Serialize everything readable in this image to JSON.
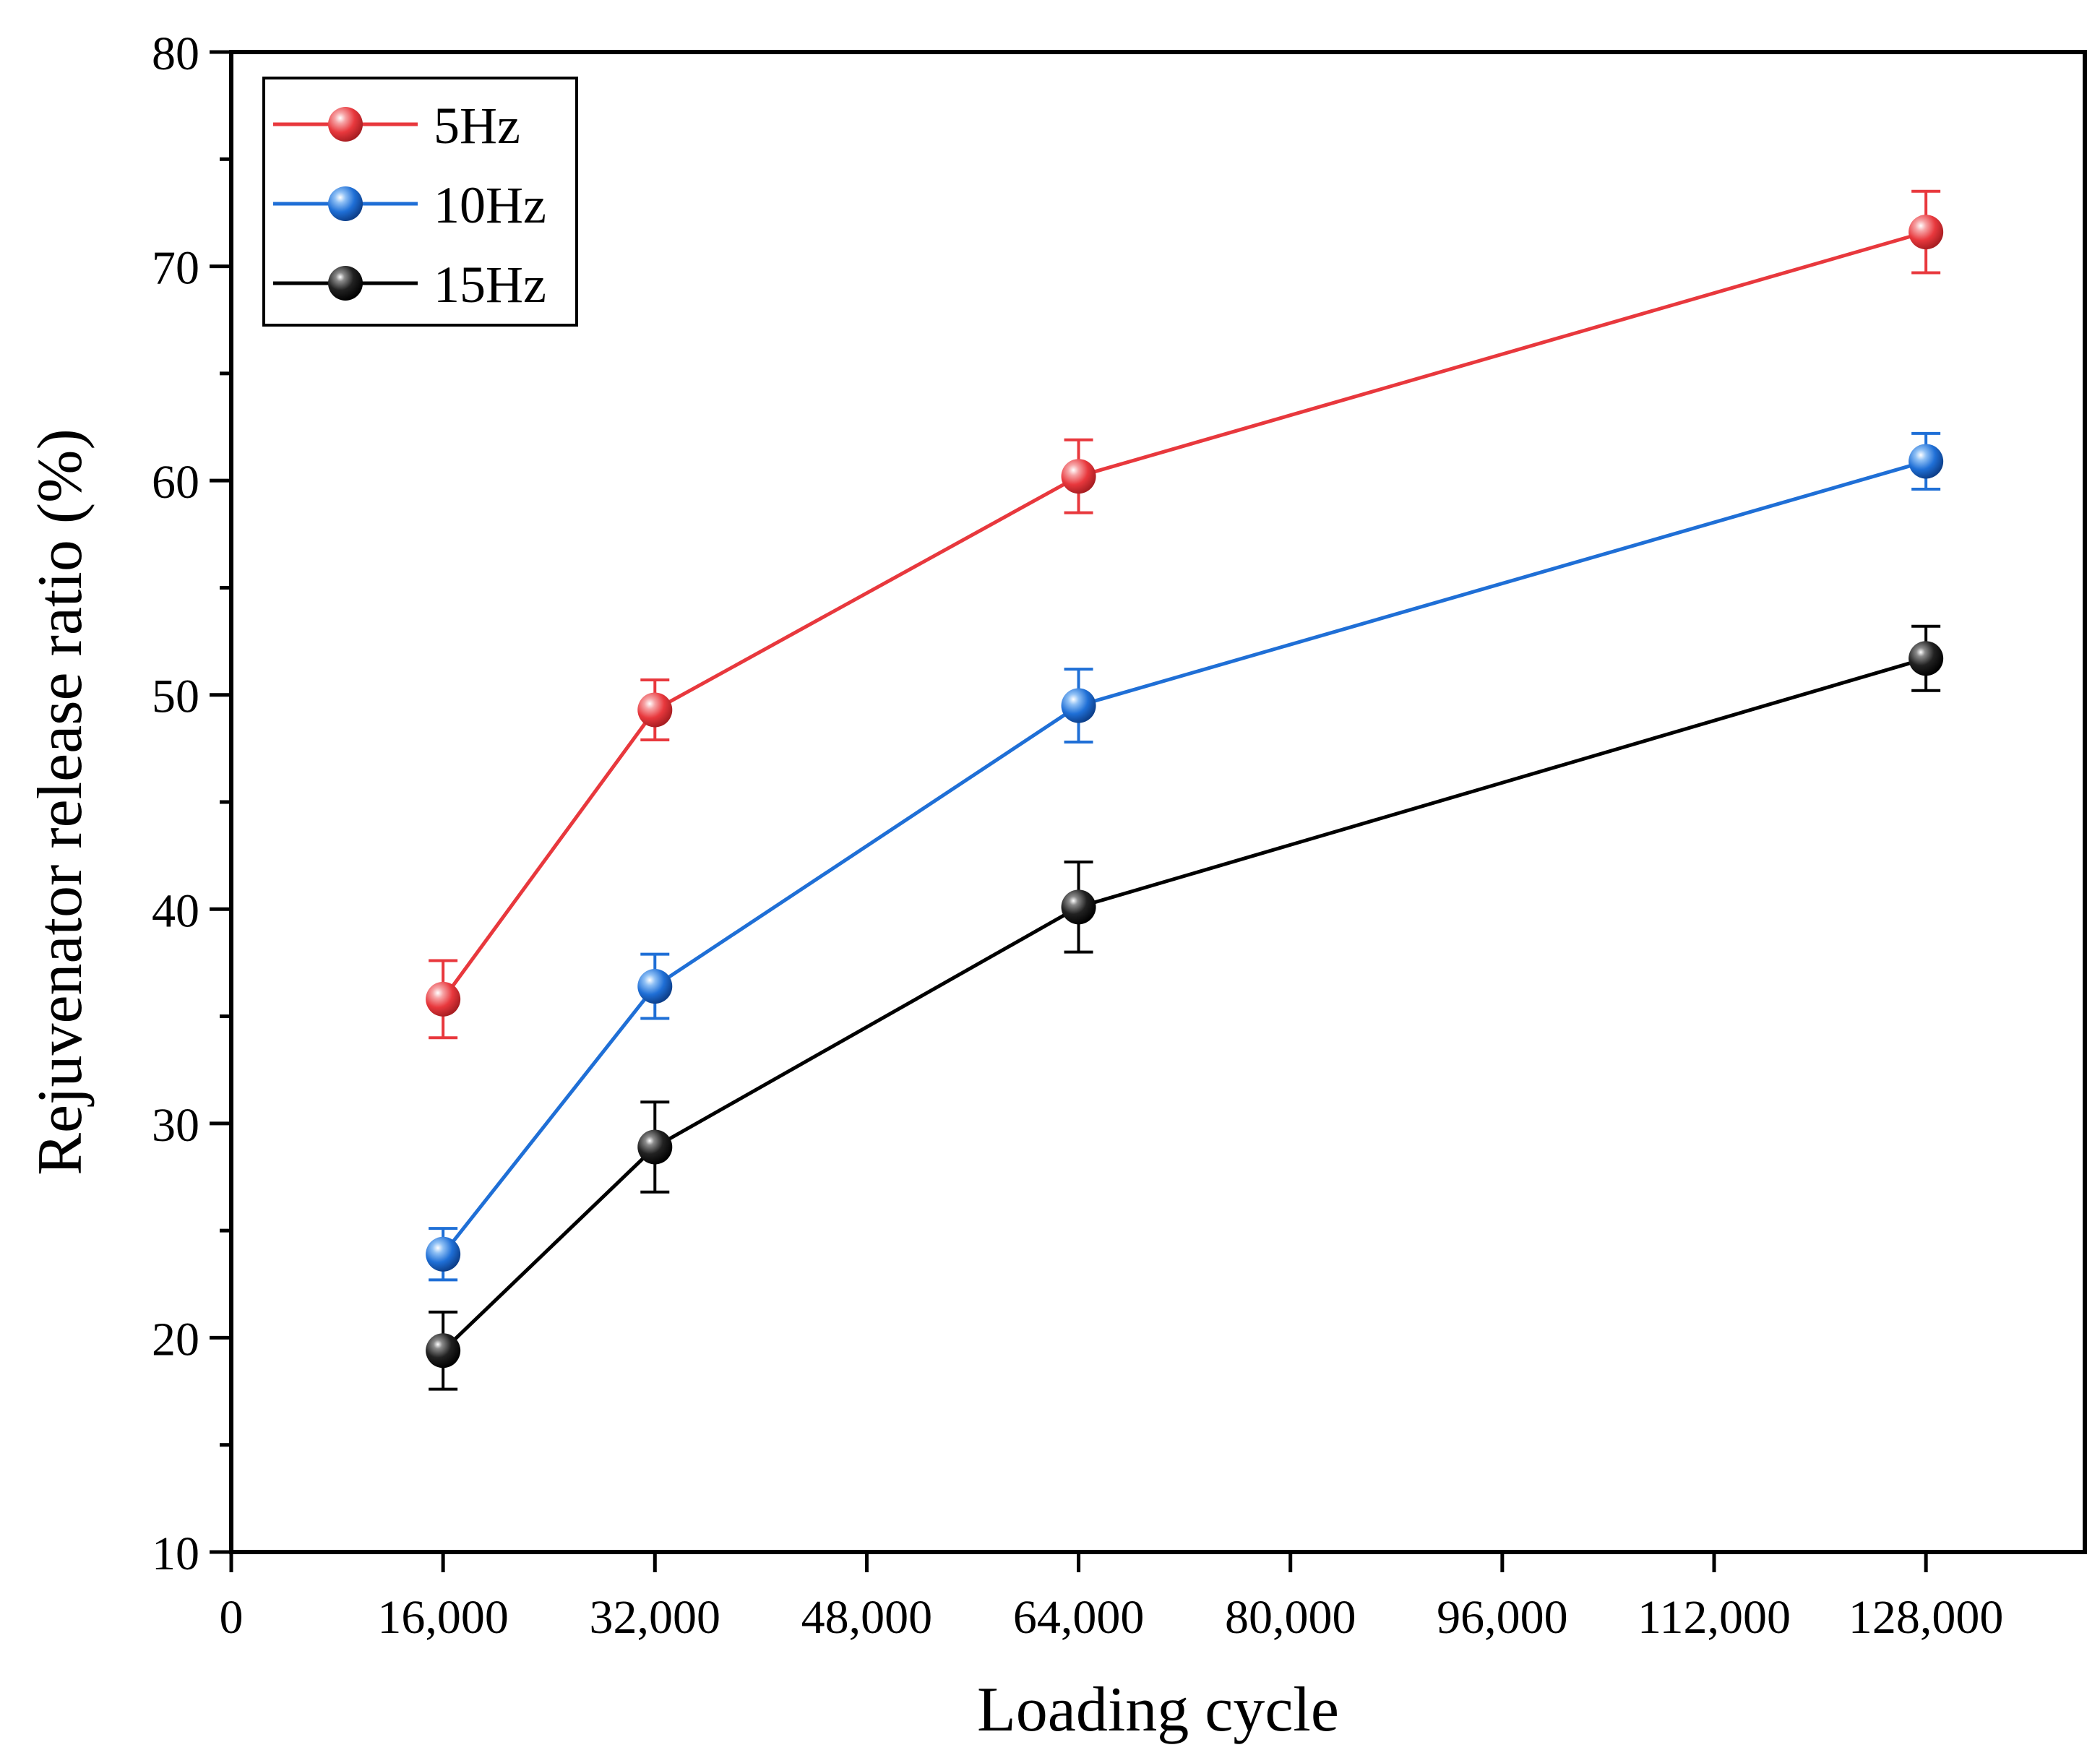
{
  "chart_data": {
    "type": "line",
    "title": "",
    "xlabel": "Loading cycle",
    "ylabel": "Rejuvenator release ratio (%)",
    "xlim": [
      0,
      140000
    ],
    "ylim": [
      10,
      80
    ],
    "x_ticks": [
      0,
      16000,
      32000,
      48000,
      64000,
      80000,
      96000,
      112000,
      128000
    ],
    "x_tick_labels": [
      "0",
      "16,000",
      "32,000",
      "48,000",
      "64,000",
      "80,000",
      "96,000",
      "112,000",
      "128,000"
    ],
    "y_ticks": [
      10,
      20,
      30,
      40,
      50,
      60,
      70,
      80
    ],
    "y_tick_labels": [
      "10",
      "20",
      "30",
      "40",
      "50",
      "60",
      "70",
      "80"
    ],
    "y_minor_ticks": [
      15,
      25,
      35,
      45,
      55,
      65,
      75
    ],
    "grid": false,
    "legend_position": "top-left",
    "x": [
      16000,
      32000,
      64000,
      128000
    ],
    "series": [
      {
        "name": "5Hz",
        "color": "#e8383d",
        "values": [
          35.8,
          49.3,
          60.2,
          71.6
        ],
        "errors": [
          1.8,
          1.4,
          1.7,
          1.9
        ]
      },
      {
        "name": "10Hz",
        "color": "#1f6fd6",
        "values": [
          23.9,
          36.4,
          49.5,
          60.9
        ],
        "errors": [
          1.2,
          1.5,
          1.7,
          1.3
        ]
      },
      {
        "name": "15Hz",
        "color": "#000000",
        "values": [
          19.4,
          28.9,
          40.1,
          51.7
        ],
        "errors": [
          1.8,
          2.1,
          2.1,
          1.5
        ]
      }
    ]
  }
}
